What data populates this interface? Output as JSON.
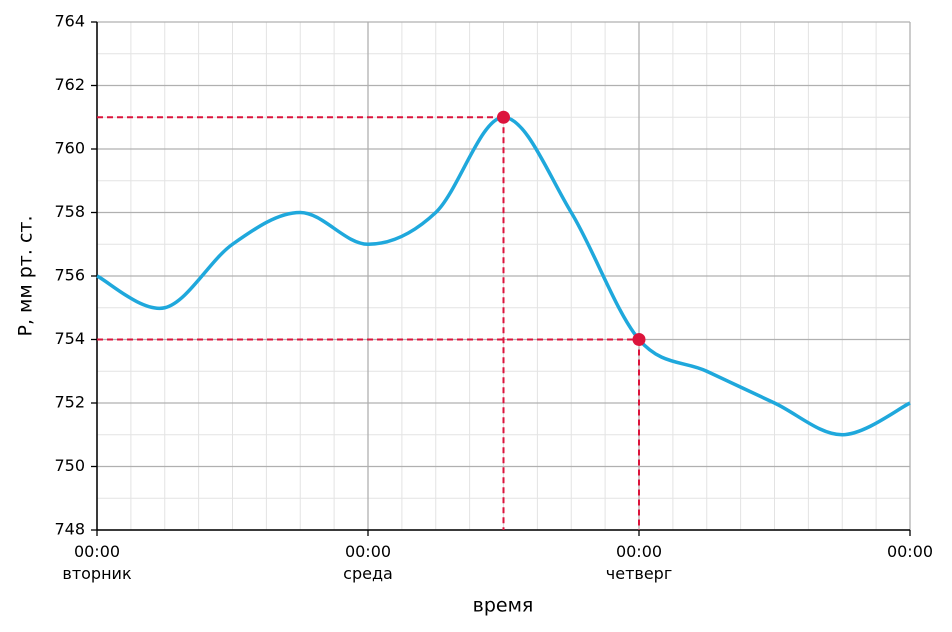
{
  "chart_data": {
    "type": "line",
    "x_label": "время",
    "y_label": "P, мм рт. ст.",
    "x": [
      0,
      6,
      12,
      18,
      24,
      30,
      36,
      42,
      48,
      54,
      60,
      66,
      72
    ],
    "series": [
      {
        "name": "P",
        "color": "#1fa8dc",
        "values": [
          756,
          755,
          757,
          758,
          757,
          758,
          761,
          758,
          754,
          753,
          752,
          751,
          752
        ]
      }
    ],
    "highlights": [
      {
        "x": 36,
        "y": 761
      },
      {
        "x": 48,
        "y": 754
      }
    ],
    "highlight_color": "#dc143c",
    "xlim": [
      0,
      72
    ],
    "xticks": [
      {
        "value": 0,
        "label": "00:00\nвторник"
      },
      {
        "value": 24,
        "label": "00:00\nсреда"
      },
      {
        "value": 48,
        "label": "00:00\nчетверг"
      },
      {
        "value": 72,
        "label": "00:00"
      }
    ],
    "xminorticks": [
      3,
      6,
      9,
      12,
      15,
      18,
      21,
      27,
      30,
      33,
      36,
      39,
      42,
      45,
      51,
      54,
      57,
      60,
      63,
      66,
      69
    ],
    "ylim": [
      748,
      764
    ],
    "yticks": [
      748,
      750,
      752,
      754,
      756,
      758,
      760,
      762,
      764
    ],
    "yminorticks": [
      749,
      751,
      753,
      755,
      757,
      759,
      761,
      763
    ],
    "grid": true
  }
}
